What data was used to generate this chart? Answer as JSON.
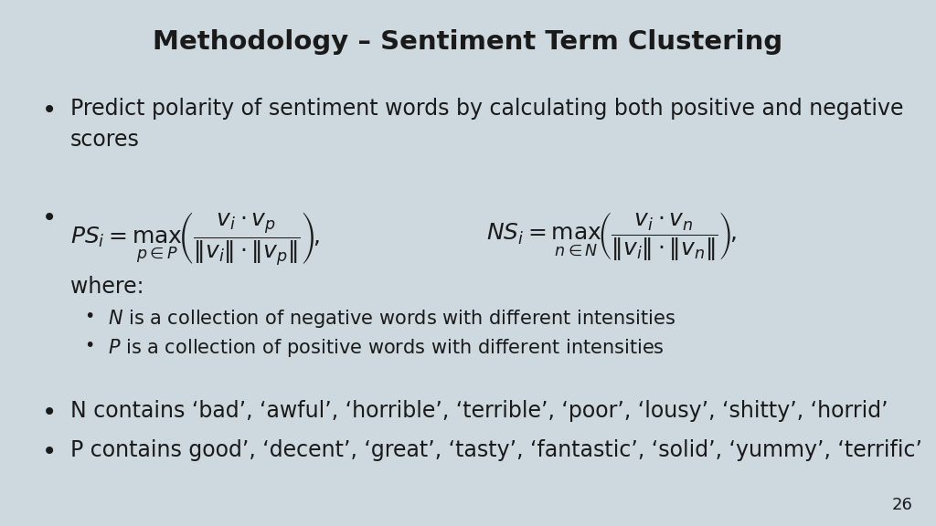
{
  "title": "Methodology – Sentiment Term Clustering",
  "background_color": "#cdd8df",
  "title_fontsize": 21,
  "slide_number": "26",
  "bullet1": "Predict polarity of sentiment words by calculating both positive and negative\nscores",
  "formula_ps": "$PS_i = \\underset{p\\in P}{\\max}\\!\\left(\\dfrac{\\mathbf{\\mathit{v}}_i\\cdot\\mathbf{\\mathit{v}}_p}{\\|\\mathbf{\\mathit{v}}_i\\|\\cdot\\|\\mathbf{\\mathit{v}}_p\\|}\\right)\\!,$",
  "formula_ns": "$NS_i = \\underset{n\\in N}{\\max}\\!\\left(\\dfrac{\\mathbf{\\mathit{v}}_i\\cdot\\mathbf{\\mathit{v}}_n}{\\|\\mathbf{\\mathit{v}}_i\\|\\cdot\\|\\mathbf{\\mathit{v}}_n\\|}\\right)\\!,$",
  "where_label": "where:",
  "sub_bullet1_pre": "N",
  "sub_bullet1_post": " is a collection of negative words with different intensities",
  "sub_bullet2_pre": "P",
  "sub_bullet2_post": " is a collection of positive words with different intensities",
  "bullet3": "N contains ‘bad’, ‘awful’, ‘horrible’, ‘terrible’, ‘poor’, ‘lousy’, ‘shitty’, ‘horrid’",
  "bullet4": "P contains good’, ‘decent’, ‘great’, ‘tasty’, ‘fantastic’, ‘solid’, ‘yummy’, ‘terrific’",
  "text_color": "#1a1a1a",
  "body_fontsize": 17,
  "sub_fontsize": 15,
  "formula_fontsize": 18
}
